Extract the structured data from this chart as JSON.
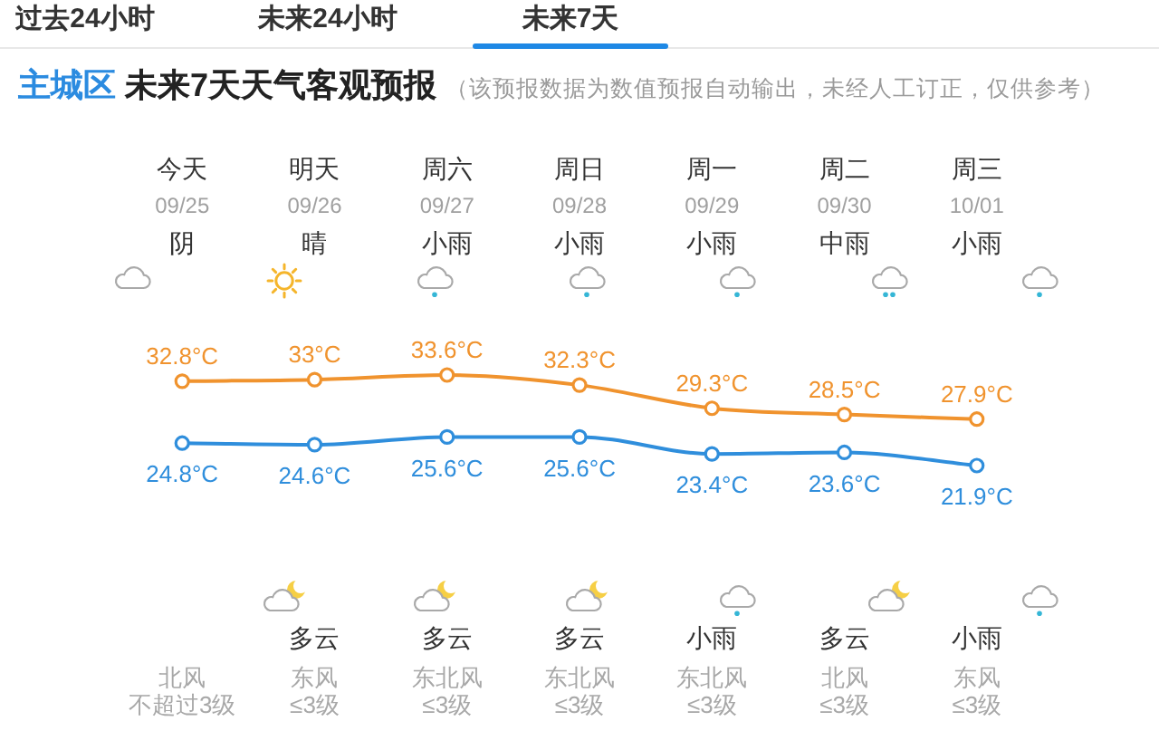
{
  "chart_data": {
    "type": "line",
    "title": "主城区 未来7天天气客观预报",
    "subtitle": "（该预报数据为数值预报自动输出，未经人工订正，仅供参考）",
    "categories": [
      "今天",
      "明天",
      "周六",
      "周日",
      "周一",
      "周二",
      "周三"
    ],
    "x2lim": [
      "--09-25",
      "--10-01"
    ],
    "x2ticks": [
      {
        "value": "--09-25",
        "label": "09/25"
      },
      {
        "value": "--09-26",
        "label": "09/26"
      },
      {
        "value": "--09-27",
        "label": "09/27"
      },
      {
        "value": "--09-28",
        "label": "09/28"
      },
      {
        "value": "--09-29",
        "label": "09/29"
      },
      {
        "value": "--09-30",
        "label": "09/30"
      },
      {
        "value": "--10-01",
        "label": "10/01"
      }
    ],
    "tick_labels": "x",
    "marker": "circle",
    "line_style": "solid",
    "series": [
      {
        "color": "#f0932e",
        "values": [
          32.8,
          33,
          33.6,
          32.3,
          29.3,
          28.5,
          27.9
        ],
        "value_labels": [
          "32.8°C",
          "33°C",
          "33.6°C",
          "32.3°C",
          "29.3°C",
          "28.5°C",
          "27.9°C"
        ]
      },
      {
        "color": "#2f8edc",
        "values": [
          24.8,
          24.6,
          25.6,
          25.6,
          23.4,
          23.6,
          21.9
        ],
        "value_labels": [
          "24.8°C",
          "24.6°C",
          "25.6°C",
          "25.6°C",
          "23.4°C",
          "23.6°C",
          "21.9°C"
        ]
      }
    ],
    "annotations": [
      "过去24小时",
      "未来24小时",
      "未来7天",
      "阴",
      "晴",
      "小雨",
      "小雨",
      "小雨",
      "中雨",
      "小雨",
      "多云",
      "多云",
      "多云",
      "小雨",
      "多云",
      "小雨",
      "北风",
      "东风",
      "东北风",
      "东北风",
      "东北风",
      "北风",
      "东风",
      "不超过3级",
      "≤3级",
      "≤3级",
      "≤3级",
      "≤3级",
      "≤3级",
      "≤3级"
    ]
  }
}
